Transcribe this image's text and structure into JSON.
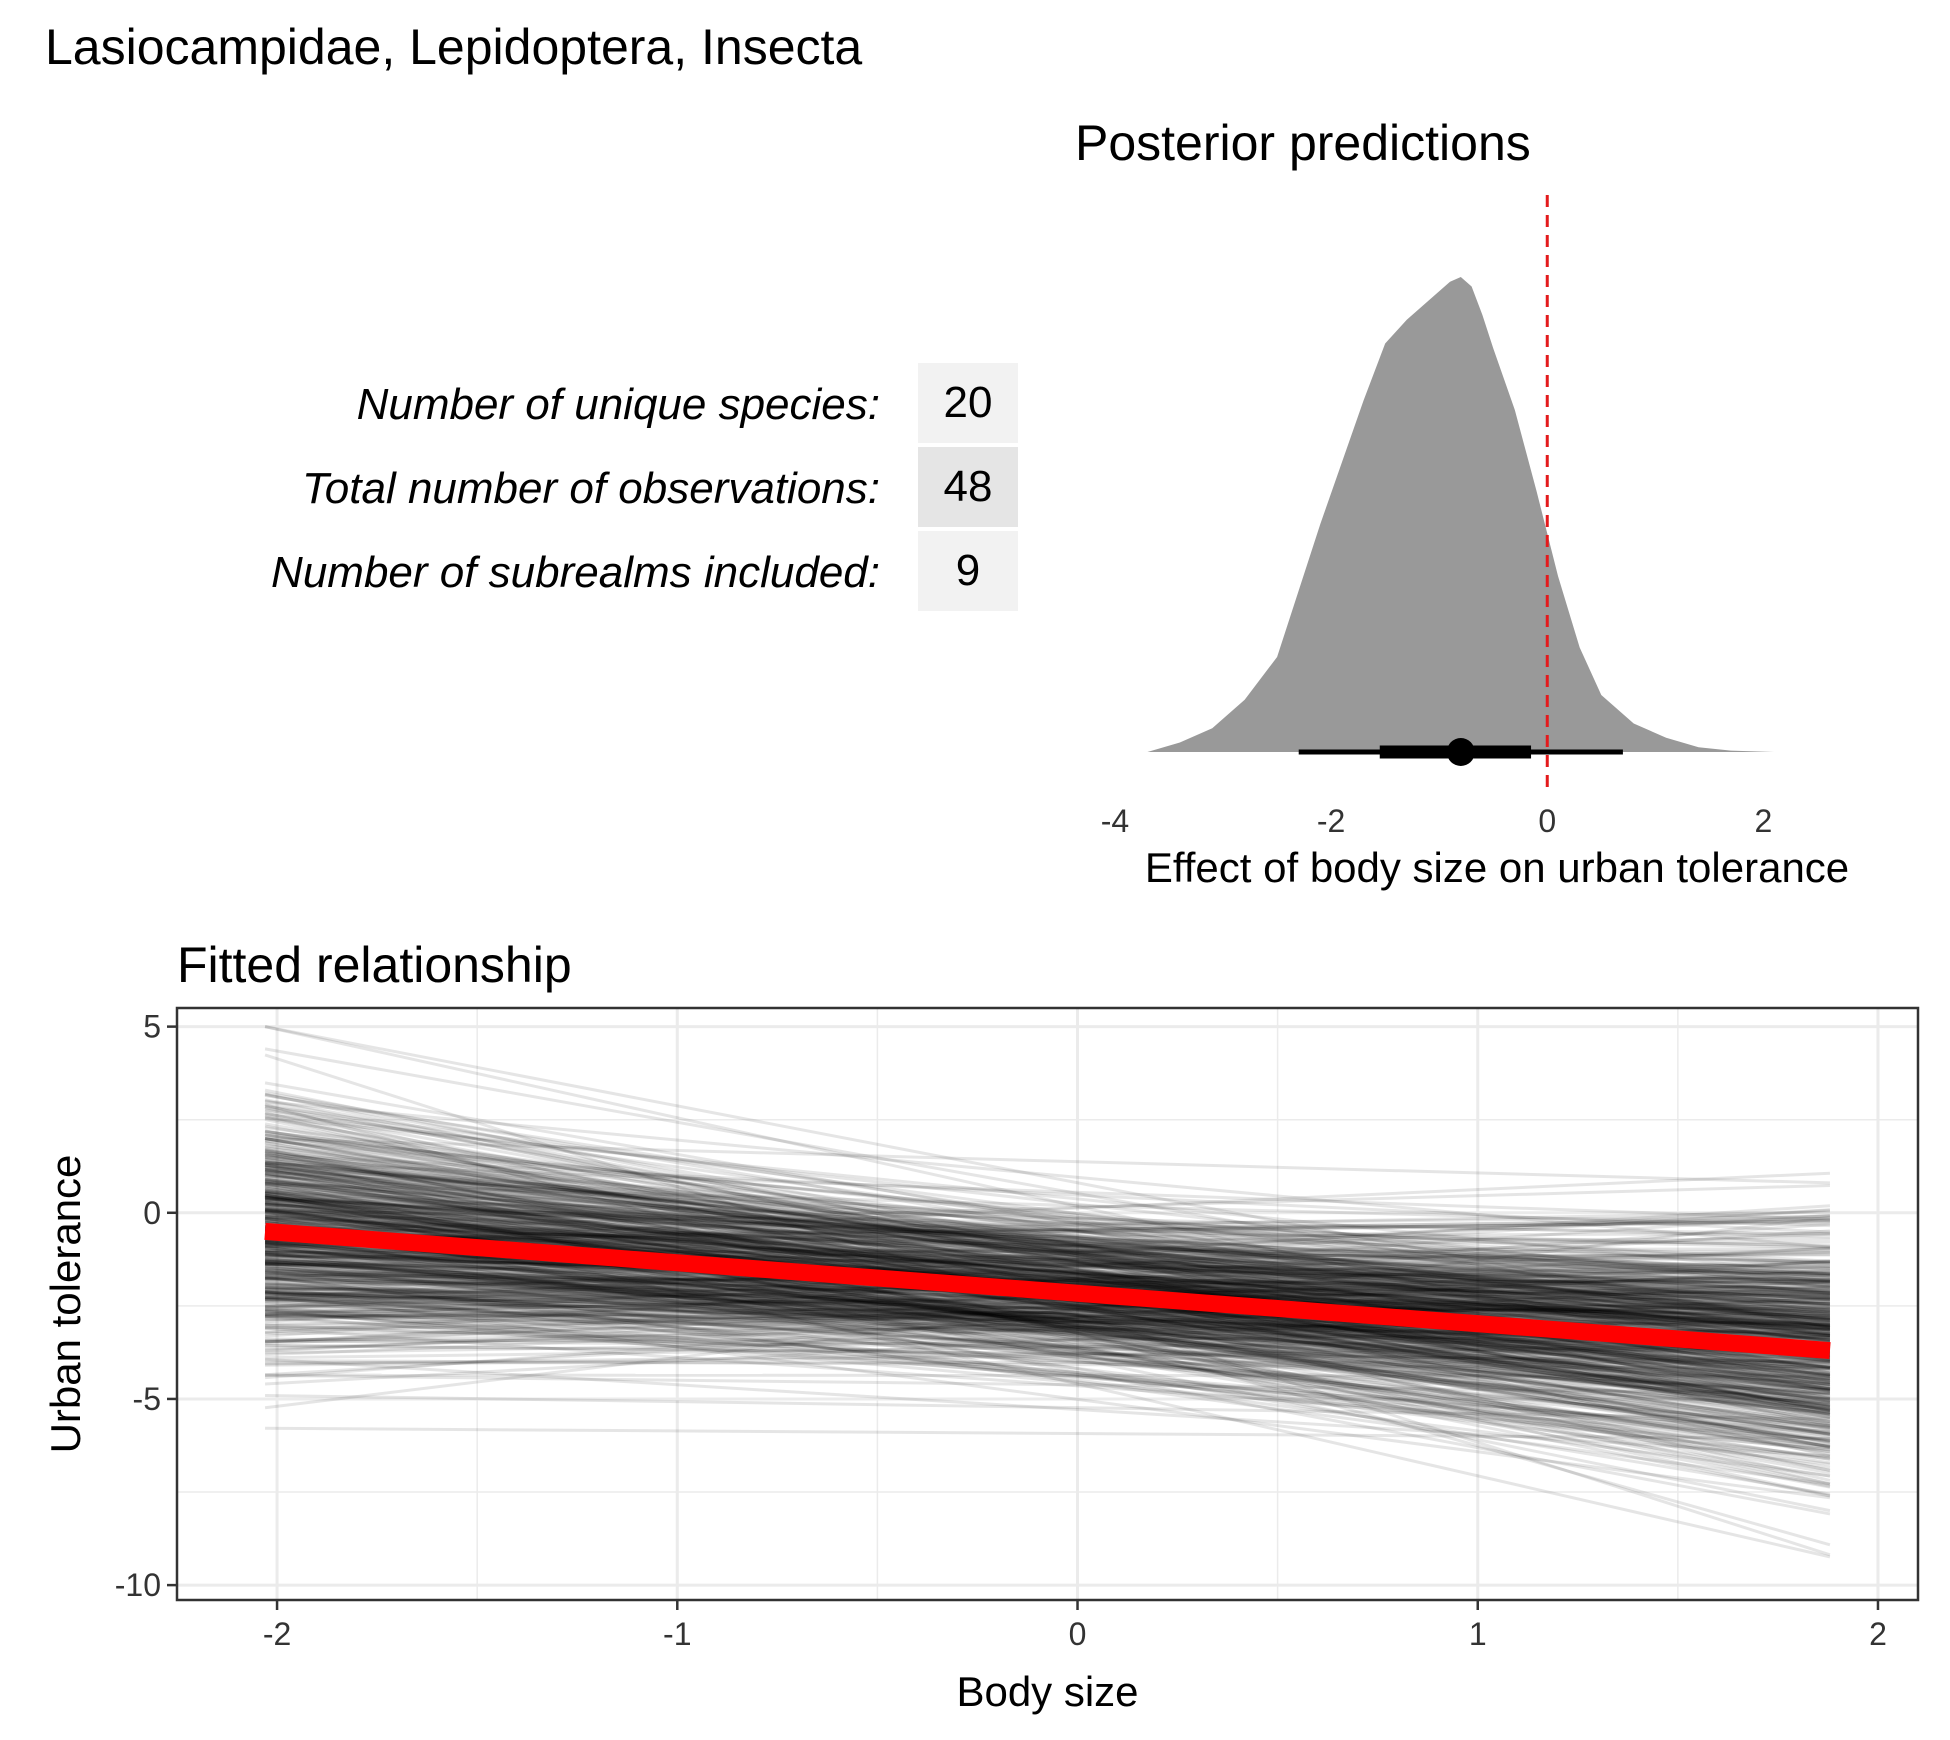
{
  "figure": {
    "title": "Lasiocampidae, Lepidoptera, Insecta"
  },
  "stats": [
    {
      "label": "Number of unique species:",
      "value": "20"
    },
    {
      "label": "Total number of observations:",
      "value": "48"
    },
    {
      "label": "Number of subrealms included:",
      "value": "9"
    }
  ],
  "colors": {
    "density_fill": "#999999",
    "reference_line": "#e41a1c",
    "fit_line": "#ff0000",
    "posterior_lines": "#000000",
    "grid": "#ebebeb",
    "stat_cell_light": "#f2f2f2",
    "stat_cell_dark": "#e5e5e5"
  },
  "chart_data": [
    {
      "type": "area",
      "title": "Posterior predictions",
      "xlabel": "Effect of body size on urban tolerance",
      "ylabel": "",
      "xlim": [
        -4,
        2.2
      ],
      "xticks": [
        -4,
        -2,
        0,
        2
      ],
      "xtick_labels": [
        "-4",
        "-2",
        "0",
        "2"
      ],
      "density": {
        "x": [
          -3.7,
          -3.4,
          -3.1,
          -2.8,
          -2.5,
          -2.3,
          -2.1,
          -1.9,
          -1.7,
          -1.5,
          -1.3,
          -1.1,
          -0.9,
          -0.8,
          -0.7,
          -0.6,
          -0.5,
          -0.3,
          -0.1,
          0.1,
          0.3,
          0.5,
          0.8,
          1.1,
          1.4,
          1.7,
          2.1
        ],
        "y": [
          0.0,
          0.02,
          0.05,
          0.11,
          0.2,
          0.34,
          0.48,
          0.61,
          0.74,
          0.86,
          0.91,
          0.95,
          0.99,
          1.0,
          0.98,
          0.92,
          0.85,
          0.72,
          0.55,
          0.37,
          0.22,
          0.12,
          0.06,
          0.03,
          0.01,
          0.003,
          0.0
        ]
      },
      "point_estimate": -0.8,
      "interval_inner": [
        -1.55,
        -0.15
      ],
      "interval_outer": [
        -2.3,
        0.7
      ],
      "reference_line_x": 0,
      "grid": false
    },
    {
      "type": "line",
      "title": "Fitted relationship",
      "xlabel": "Body size",
      "ylabel": "Urban tolerance",
      "xlim": [
        -2.25,
        2.1
      ],
      "ylim": [
        -10.4,
        5.5
      ],
      "xticks": [
        -2,
        -1,
        0,
        1,
        2
      ],
      "xtick_labels": [
        "-2",
        "-1",
        "0",
        "1",
        "2"
      ],
      "yticks": [
        -10,
        -5,
        0,
        5
      ],
      "ytick_labels": [
        "-10",
        "-5",
        "0",
        "5"
      ],
      "x_range": [
        -2.03,
        1.88
      ],
      "fit": {
        "x": [
          -2.03,
          1.88
        ],
        "y": [
          -0.5,
          -3.7
        ]
      },
      "posterior_draws": {
        "count": 600,
        "intercept_at_0": {
          "mean": -2.1,
          "sd": 1.1
        },
        "slope": {
          "mean": -0.82,
          "sd": 0.65
        }
      },
      "grid": true
    }
  ]
}
